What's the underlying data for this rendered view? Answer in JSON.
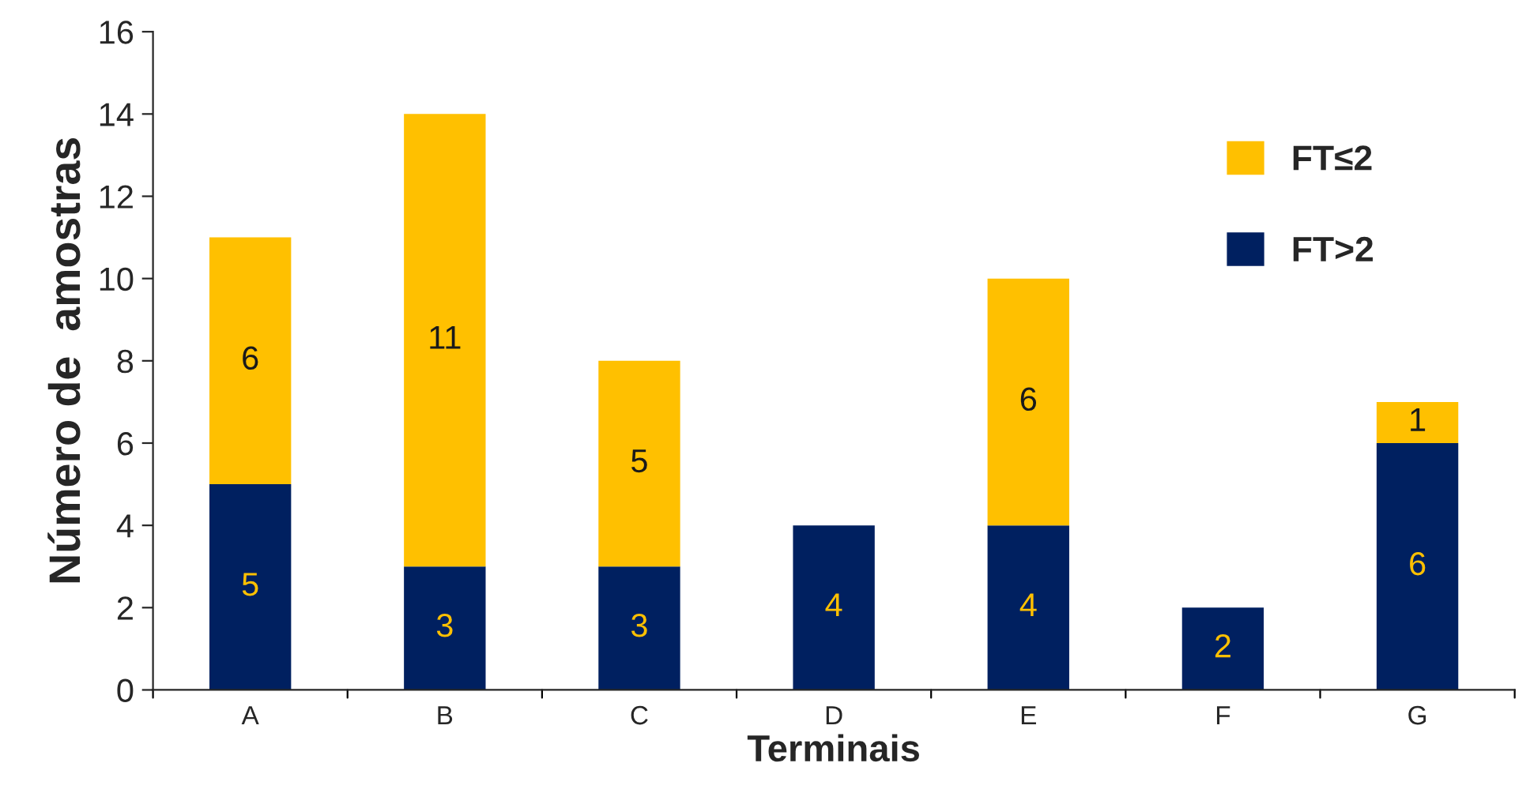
{
  "chart_data": {
    "type": "bar",
    "stacked": true,
    "xlabel": "Terminais",
    "ylabel": "Número de  amostras",
    "categories": [
      "A",
      "B",
      "C",
      "D",
      "E",
      "F",
      "G"
    ],
    "series": [
      {
        "name": "FT>2",
        "color": "#002060",
        "values": [
          5,
          3,
          3,
          4,
          4,
          2,
          6
        ],
        "value_labels": [
          "5",
          "3",
          "3",
          "4",
          "4",
          "2",
          "6"
        ]
      },
      {
        "name": "FT≤2",
        "color": "#ffc000",
        "values": [
          6,
          11,
          5,
          0,
          6,
          0,
          1
        ],
        "value_labels": [
          "6",
          "11",
          "5",
          null,
          "6",
          null,
          "1"
        ]
      }
    ],
    "ylim": [
      0,
      16
    ],
    "yticks": [
      0,
      2,
      4,
      6,
      8,
      10,
      12,
      14,
      16
    ],
    "grid": false,
    "legend": "top right"
  }
}
